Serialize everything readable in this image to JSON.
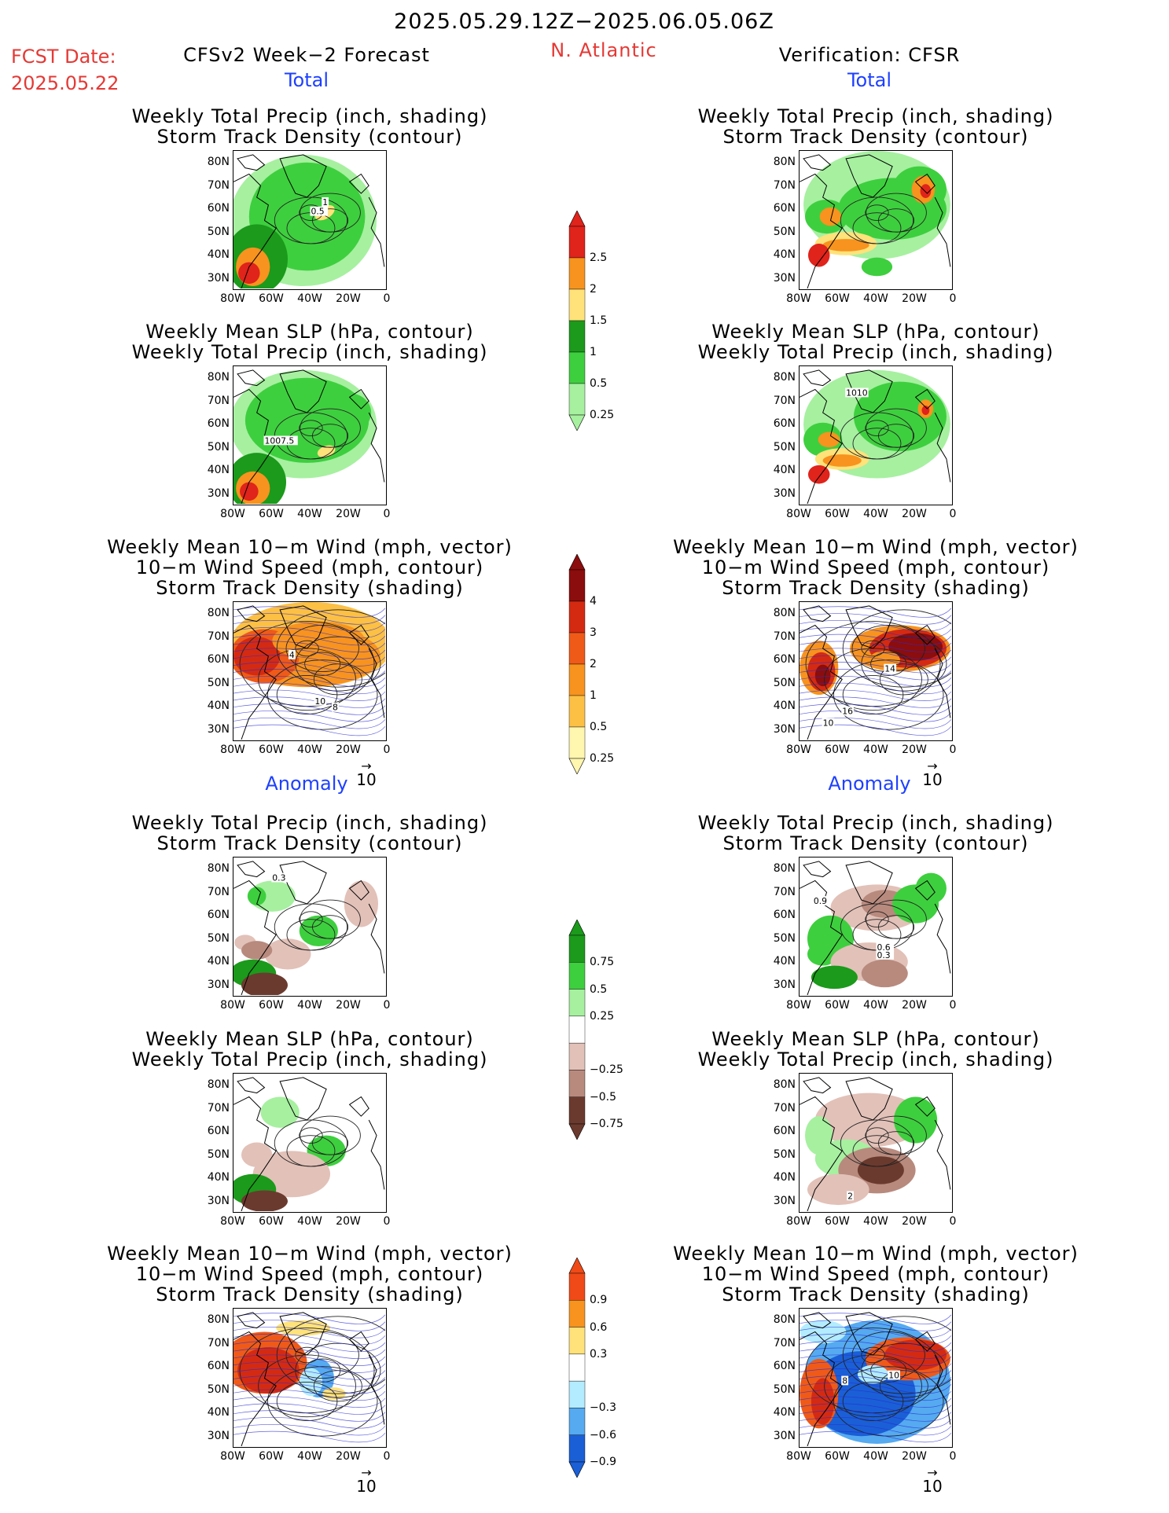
{
  "header": {
    "date_range": "2025.05.29.12Z−2025.06.05.06Z",
    "fcst_label": "FCST Date:",
    "fcst_date": "2025.05.22",
    "model_title": "CFSv2 Week−2 Forecast",
    "region": "N. Atlantic",
    "verification": "Verification: CFSR"
  },
  "sections": {
    "total": "Total",
    "anomaly": "Anomaly"
  },
  "titles": {
    "precip_storm": [
      "Weekly Total Precip (inch, shading)",
      "Storm Track Density (contour)"
    ],
    "slp_precip": [
      "Weekly Mean SLP (hPa, contour)",
      "Weekly Total Precip (inch, shading)"
    ],
    "wind_storm": [
      "Weekly Mean 10−m Wind (mph, vector)",
      "10−m Wind Speed (mph, contour)",
      "Storm Track Density (shading)"
    ]
  },
  "axes": {
    "lat_labels": [
      "80N",
      "70N",
      "60N",
      "50N",
      "40N",
      "30N"
    ],
    "lon_labels": [
      "80W",
      "60W",
      "40W",
      "20W",
      "0"
    ]
  },
  "vector_ref": "10",
  "map_labels": {
    "fc_total_precip": [
      "1",
      "0.5"
    ],
    "fc_total_slp": [
      "1007.5"
    ],
    "fc_total_wind": [
      "4",
      "10",
      "8"
    ],
    "vf_total_slp": [
      "1010"
    ],
    "vf_total_wind": [
      "14",
      "16",
      "10"
    ],
    "fc_anom_precip": [
      "0.3"
    ],
    "vf_anom_precip": [
      "0.9",
      "0.6",
      "0.3"
    ],
    "vf_anom_slp": [
      "2"
    ],
    "vf_anom_wind": [
      "10",
      "8"
    ]
  },
  "colorbars": {
    "precip_total": {
      "labels": [
        "2.5",
        "2",
        "1.5",
        "1",
        "0.5",
        "0.25"
      ],
      "colors": [
        "#e0231b",
        "#f7931e",
        "#ffe27a",
        "#1b9a1b",
        "#3ecf3e",
        "#a6f0a0"
      ]
    },
    "storm_total": {
      "labels": [
        "4",
        "3",
        "2",
        "1",
        "0.5",
        "0.25"
      ],
      "colors": [
        "#8b0d0d",
        "#d42a12",
        "#ef5a18",
        "#f7931e",
        "#fcc044",
        "#fff6b0"
      ]
    },
    "precip_anom": {
      "labels": [
        "0.75",
        "0.5",
        "0.25",
        "−0.25",
        "−0.5",
        "−0.75"
      ],
      "colors": [
        "#1b9a1b",
        "#3ecf3e",
        "#a6f0a0",
        "#ffffff",
        "#e2c1b8",
        "#b88a7e",
        "#6b3a2e"
      ]
    },
    "storm_anom": {
      "labels": [
        "0.9",
        "0.6",
        "0.3",
        "−0.3",
        "−0.6",
        "−0.9"
      ],
      "colors": [
        "#ef4a18",
        "#f7931e",
        "#ffe27a",
        "#ffffff",
        "#b3ecff",
        "#55aaf0",
        "#1a5fd6"
      ]
    }
  }
}
